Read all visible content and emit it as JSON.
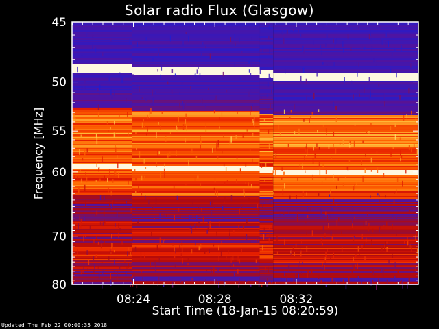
{
  "header": {
    "title": "Solar radio Flux (Glasgow)"
  },
  "footer": {
    "updated": "Updated Thu Feb 22 00:00:35 2018"
  },
  "chart_data": {
    "type": "heatmap",
    "title": "Solar radio Flux (Glasgow)",
    "xlabel": "Start Time (18-Jan-15 08:20:59)",
    "ylabel": "Frequency [MHz]",
    "xlim": [
      "08:20:59",
      "08:38:00"
    ],
    "ylim": [
      45,
      80
    ],
    "y_scale": "reciprocal",
    "x_ticks": [
      "08:24",
      "08:28",
      "08:32"
    ],
    "y_ticks": [
      45,
      50,
      55,
      60,
      70,
      80
    ],
    "colormap": [
      "#1E1ED2",
      "#5014A0",
      "#B40A0A",
      "#E61E00",
      "#FF6400",
      "#FFDC50",
      "#FFFFFF"
    ],
    "segments": [
      "08:20:59",
      "08:23:56",
      "08:30:12",
      "08:30:52",
      "08:38:00"
    ],
    "bright_lines_mhz": [
      48.7,
      59.2
    ]
  }
}
